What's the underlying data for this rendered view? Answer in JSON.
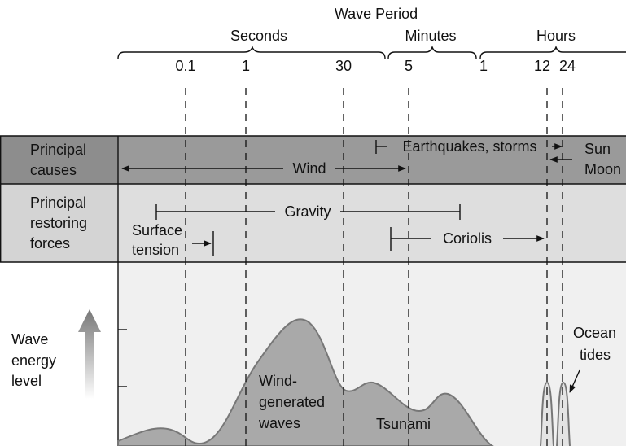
{
  "header": {
    "title": "Wave Period",
    "groups": [
      "Seconds",
      "Minutes",
      "Hours"
    ],
    "ticks": [
      "0.1",
      "1",
      "30",
      "5",
      "1",
      "12",
      "24"
    ]
  },
  "causes": {
    "label": [
      "Principal",
      "causes"
    ],
    "items": [
      "Wind",
      "Earthquakes, storms",
      "Sun",
      "Moon"
    ]
  },
  "restoring": {
    "label": [
      "Principal",
      "restoring",
      "forces"
    ],
    "items": [
      "Gravity",
      "Surface",
      "tension",
      "Coriolis"
    ]
  },
  "energy": {
    "label": [
      "Wave",
      "energy",
      "level"
    ],
    "annotations": [
      "Wind-",
      "generated",
      "waves",
      "Tsunami",
      "Ocean",
      "tides"
    ]
  }
}
